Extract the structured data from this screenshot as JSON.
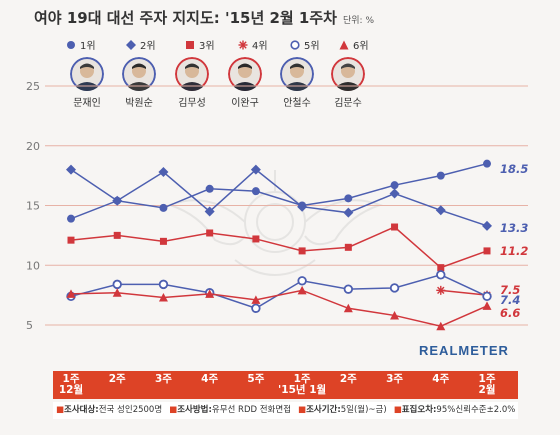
{
  "header": {
    "title": "여야 19대 대선 주자 지지도: '15년 2월 1주차",
    "unit_label": "단위: %"
  },
  "legend": [
    {
      "label": "1위",
      "marker": "circle-filled",
      "color": "#4d5fb0"
    },
    {
      "label": "2위",
      "marker": "diamond-filled",
      "color": "#4d5fb0"
    },
    {
      "label": "3위",
      "marker": "square-filled",
      "color": "#d1373c"
    },
    {
      "label": "4위",
      "marker": "asterisk",
      "color": "#d1373c"
    },
    {
      "label": "5위",
      "marker": "circle-open",
      "color": "#4d5fb0"
    },
    {
      "label": "6위",
      "marker": "triangle-filled",
      "color": "#d1373c"
    }
  ],
  "candidates": [
    {
      "name": "문재인",
      "icon": "person-photo-icon",
      "ring": "#4d5fb0"
    },
    {
      "name": "박원순",
      "icon": "person-photo-icon",
      "ring": "#4d5fb0"
    },
    {
      "name": "김무성",
      "icon": "person-photo-icon",
      "ring": "#d1373c"
    },
    {
      "name": "이완구",
      "icon": "person-photo-icon",
      "ring": "#d1373c"
    },
    {
      "name": "안철수",
      "icon": "person-photo-icon",
      "ring": "#4d5fb0"
    },
    {
      "name": "김문수",
      "icon": "person-photo-icon",
      "ring": "#d1373c"
    }
  ],
  "brand": "REALMETER",
  "footer": {
    "items": [
      {
        "key": "조사대상:",
        "value": "전국 성인2500명"
      },
      {
        "key": "조사방법:",
        "value": "유무선 RDD 전화면접"
      },
      {
        "key": "조사기간:",
        "value": "5일(월)~금)"
      },
      {
        "key": "표집오차:",
        "value": "95%신뢰수준±2.0%"
      },
      {
        "key": "조사기관:",
        "value": "리얼미터"
      }
    ]
  },
  "chart_data": {
    "type": "line",
    "title": "여야 19대 대선 주자 지지도: '15년 2월 1주차",
    "unit": "단위: %",
    "ylim": [
      0,
      25
    ],
    "yticks": [
      5,
      10,
      15,
      20,
      25
    ],
    "grid": true,
    "legend_position": "top",
    "categories": [
      {
        "l1": "1주",
        "l2": "12월"
      },
      {
        "l1": "2주",
        "l2": ""
      },
      {
        "l1": "3주",
        "l2": ""
      },
      {
        "l1": "4주",
        "l2": ""
      },
      {
        "l1": "5주",
        "l2": ""
      },
      {
        "l1": "1주",
        "l2": "'15년 1월"
      },
      {
        "l1": "2주",
        "l2": ""
      },
      {
        "l1": "3주",
        "l2": ""
      },
      {
        "l1": "4주",
        "l2": ""
      },
      {
        "l1": "1주",
        "l2": "2월"
      }
    ],
    "series": [
      {
        "name": "문재인",
        "rank": "1위",
        "marker": "circle-filled",
        "color": "#4d5fb0",
        "values": [
          13.9,
          15.4,
          14.8,
          16.4,
          16.2,
          15.0,
          15.6,
          16.7,
          17.5,
          18.5
        ],
        "end_label": "18.5"
      },
      {
        "name": "박원순",
        "rank": "2위",
        "marker": "diamond-filled",
        "color": "#4d5fb0",
        "values": [
          18.0,
          15.4,
          17.8,
          14.5,
          18.0,
          14.9,
          14.4,
          16.0,
          14.6,
          13.3
        ],
        "end_label": "13.3"
      },
      {
        "name": "김무성",
        "rank": "3위",
        "marker": "square-filled",
        "color": "#d1373c",
        "values": [
          12.1,
          12.5,
          12.0,
          12.7,
          12.2,
          11.2,
          11.5,
          13.2,
          9.8,
          11.2
        ],
        "end_label": "11.2"
      },
      {
        "name": "이완구",
        "rank": "4위",
        "marker": "asterisk",
        "color": "#d1373c",
        "values": [
          null,
          null,
          null,
          null,
          null,
          null,
          null,
          null,
          7.9,
          7.5
        ],
        "end_label": "7.5"
      },
      {
        "name": "안철수",
        "rank": "5위",
        "marker": "circle-open",
        "color": "#4d5fb0",
        "values": [
          7.4,
          8.4,
          8.4,
          7.7,
          6.4,
          8.7,
          8.0,
          8.1,
          9.2,
          7.4
        ],
        "end_label": "7.4"
      },
      {
        "name": "김문수",
        "rank": "6위",
        "marker": "triangle-filled",
        "color": "#d1373c",
        "values": [
          7.6,
          7.7,
          7.3,
          7.6,
          7.1,
          7.9,
          6.4,
          5.8,
          4.9,
          6.6
        ],
        "end_label": "6.6"
      }
    ]
  }
}
